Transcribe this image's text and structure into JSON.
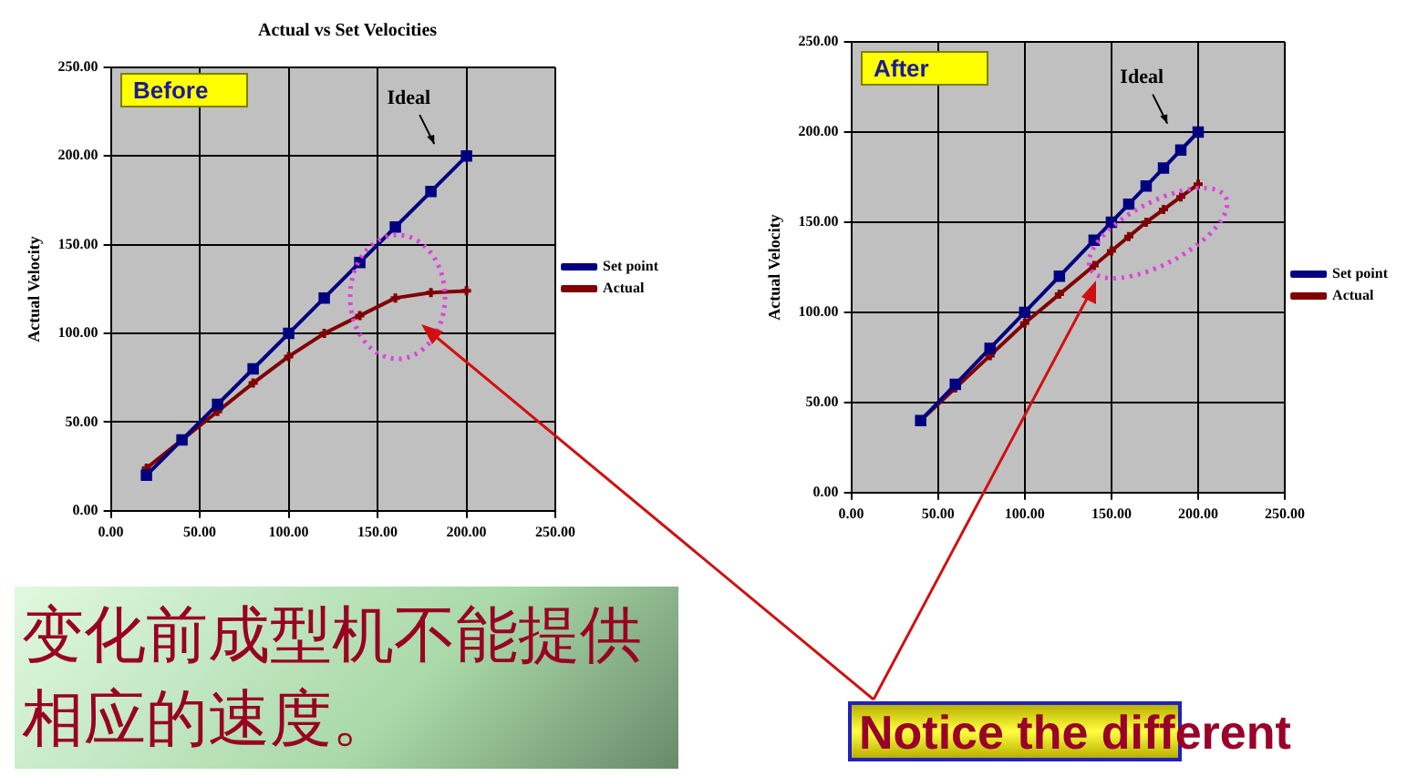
{
  "chart_data": [
    {
      "type": "line",
      "title": "Actual vs Set Velocities",
      "ylabel": "Actual Velocity",
      "xlim": [
        0,
        250
      ],
      "ylim": [
        0,
        250
      ],
      "xticks": [
        {
          "value": 0,
          "label": "0.00"
        },
        {
          "value": 50,
          "label": "50.00"
        },
        {
          "value": 100,
          "label": "100.00"
        },
        {
          "value": 150,
          "label": "150.00"
        },
        {
          "value": 200,
          "label": "200.00"
        },
        {
          "value": 250,
          "label": "250.00"
        }
      ],
      "yticks": [
        {
          "value": 0,
          "label": "0.00"
        },
        {
          "value": 50,
          "label": "50.00"
        },
        {
          "value": 100,
          "label": "100.00"
        },
        {
          "value": 150,
          "label": "150.00"
        },
        {
          "value": 200,
          "label": "200.00"
        },
        {
          "value": 250,
          "label": "250.00"
        }
      ],
      "grid": true,
      "legend": "right",
      "series": [
        {
          "name": "Set point",
          "color": "#000080",
          "marker": "square",
          "x": [
            20,
            40,
            60,
            80,
            100,
            120,
            140,
            160,
            180,
            200
          ],
          "values": [
            20,
            40,
            60,
            80,
            100,
            120,
            140,
            160,
            180,
            200
          ]
        },
        {
          "name": "Actual",
          "color": "#800000",
          "marker": "cross",
          "x": [
            20,
            40,
            60,
            80,
            100,
            120,
            140,
            160,
            180,
            200
          ],
          "values": [
            24,
            40,
            56,
            72,
            87,
            100,
            110,
            120,
            123,
            124
          ]
        }
      ],
      "annotations": [
        "Before",
        "Ideal",
        "变化前成型机不能提供相应的速度。"
      ]
    },
    {
      "type": "line",
      "ylabel": "Actual Velocity",
      "xlim": [
        0,
        250
      ],
      "ylim": [
        0,
        250
      ],
      "xticks": [
        {
          "value": 0,
          "label": "0.00"
        },
        {
          "value": 50,
          "label": "50.00"
        },
        {
          "value": 100,
          "label": "100.00"
        },
        {
          "value": 150,
          "label": "150.00"
        },
        {
          "value": 200,
          "label": "200.00"
        },
        {
          "value": 250,
          "label": "250.00"
        }
      ],
      "yticks": [
        {
          "value": 0,
          "label": "0.00"
        },
        {
          "value": 50,
          "label": "50.00"
        },
        {
          "value": 100,
          "label": "100.00"
        },
        {
          "value": 150,
          "label": "150.00"
        },
        {
          "value": 200,
          "label": "200.00"
        },
        {
          "value": 250,
          "label": "250.00"
        }
      ],
      "grid": true,
      "legend": "right",
      "series": [
        {
          "name": "Set point",
          "color": "#000080",
          "marker": "square",
          "x": [
            40,
            60,
            80,
            100,
            120,
            140,
            150,
            160,
            170,
            180,
            190,
            200
          ],
          "values": [
            40,
            60,
            80,
            100,
            120,
            140,
            150,
            160,
            170,
            180,
            190,
            200
          ]
        },
        {
          "name": "Actual",
          "color": "#800000",
          "marker": "cross",
          "x": [
            40,
            60,
            80,
            100,
            120,
            140,
            150,
            160,
            170,
            180,
            190,
            200
          ],
          "values": [
            40,
            58,
            76,
            94,
            110,
            126,
            134,
            142,
            150,
            157,
            164,
            171
          ]
        }
      ],
      "annotations": [
        "After",
        "Ideal",
        "Notice the different"
      ]
    }
  ]
}
